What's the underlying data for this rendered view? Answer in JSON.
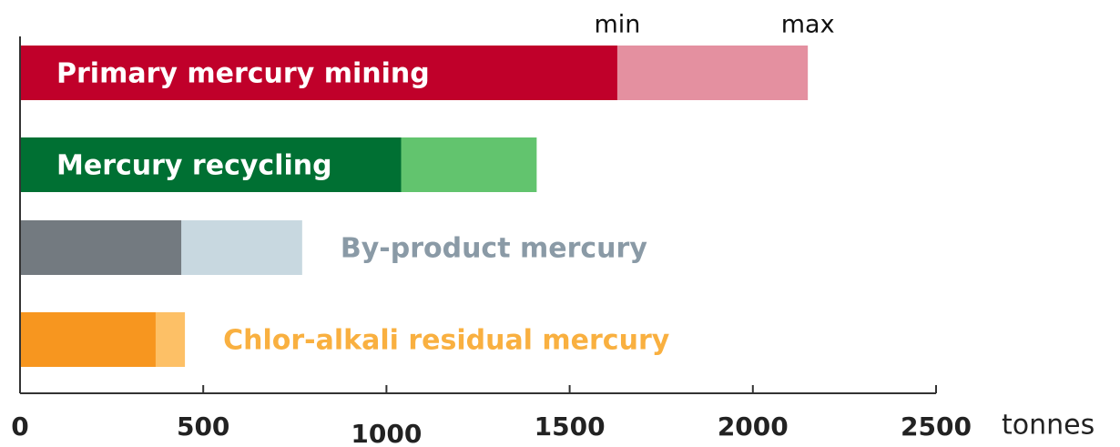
{
  "chart_data": {
    "type": "bar",
    "orientation": "horizontal",
    "categories": [
      "Primary mercury mining",
      "Mercury recycling",
      "By-product mercury",
      "Chlor-alkali residual mercury"
    ],
    "series": [
      {
        "name": "min",
        "values": [
          1630,
          1040,
          440,
          370
        ],
        "colors": [
          "#c0002a",
          "#007033",
          "#737a80",
          "#f7961f"
        ]
      },
      {
        "name": "max",
        "values": [
          2150,
          1410,
          770,
          450
        ],
        "colors": [
          "#e490a0",
          "#62c46e",
          "#c8d8e0",
          "#fdc066"
        ]
      }
    ],
    "label_colors": [
      "#ffffff",
      "#ffffff",
      "#8a9aa6",
      "#f9b040"
    ],
    "xlim": [
      0,
      2500
    ],
    "xticks": [
      0,
      500,
      1000,
      1500,
      2000,
      2500
    ],
    "x_label": "tonnes"
  }
}
